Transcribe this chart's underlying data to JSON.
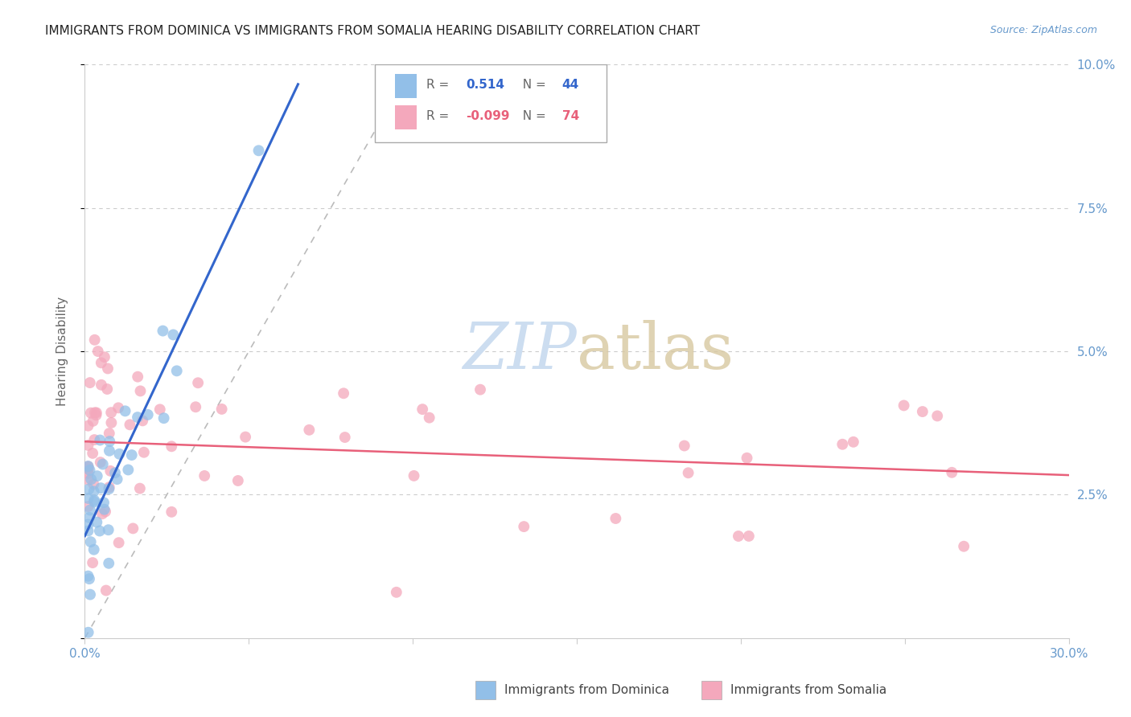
{
  "title": "IMMIGRANTS FROM DOMINICA VS IMMIGRANTS FROM SOMALIA HEARING DISABILITY CORRELATION CHART",
  "source": "Source: ZipAtlas.com",
  "ylabel": "Hearing Disability",
  "xlim": [
    0.0,
    0.3
  ],
  "ylim": [
    0.0,
    0.1
  ],
  "dominica_color": "#92bfe8",
  "somalia_color": "#f4a8bc",
  "dominica_line_color": "#3366cc",
  "somalia_line_color": "#e8607a",
  "ref_line_color": "#bbbbbb",
  "title_color": "#222222",
  "axis_label_color": "#666666",
  "tick_color": "#6699cc",
  "grid_color": "#cccccc",
  "watermark_color": "#ccddf0",
  "dominica_N": 44,
  "somalia_N": 74
}
